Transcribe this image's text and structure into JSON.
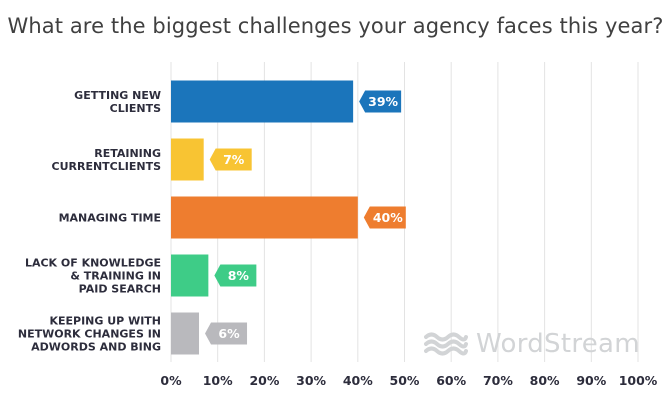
{
  "page": {
    "title": "What are the biggest challenges your agency faces this year?"
  },
  "brand": {
    "name": "WordStream"
  },
  "chart_data": {
    "type": "bar",
    "orientation": "horizontal",
    "title": "What are the biggest challenges your agency faces this year?",
    "categories": [
      [
        "GETTING NEW",
        "CLIENTS"
      ],
      [
        "RETAINING",
        "CURRENTCLIENTS"
      ],
      [
        "MANAGING TIME"
      ],
      [
        "LACK OF KNOWLEDGE",
        "& TRAINING IN",
        "PAID SEARCH"
      ],
      [
        "KEEPING UP WITH",
        "NETWORK CHANGES IN",
        "ADWORDS AND BING"
      ]
    ],
    "values": [
      39,
      7,
      40,
      8,
      6
    ],
    "data_labels": [
      "39%",
      "7%",
      "40%",
      "8%",
      "6%"
    ],
    "colors": [
      "#1b75bb",
      "#f8c433",
      "#ee7d2f",
      "#3ecc87",
      "#b9b9bd"
    ],
    "xlim": [
      0,
      100
    ],
    "xticks": [
      0,
      10,
      20,
      30,
      40,
      50,
      60,
      70,
      80,
      90,
      100
    ],
    "xtick_labels": [
      "0%",
      "10%",
      "20%",
      "30%",
      "40%",
      "50%",
      "60%",
      "70%",
      "80%",
      "90%",
      "100%"
    ],
    "xlabel": "",
    "ylabel": "",
    "grid": true,
    "gridline_color": "#e3e3e3",
    "label_color": "#2d2d3c"
  }
}
